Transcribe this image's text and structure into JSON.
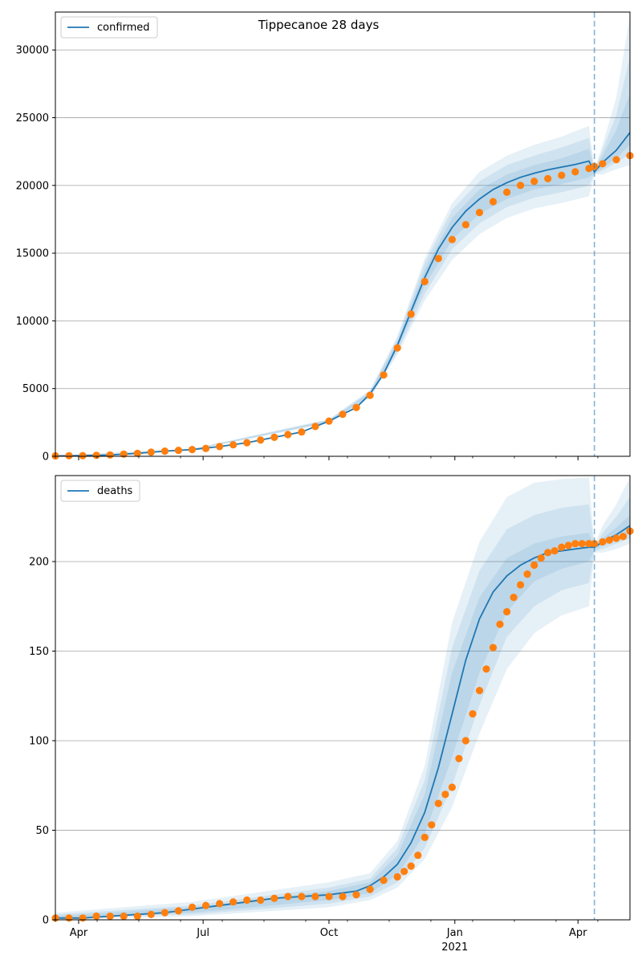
{
  "title": "Tippecanoe 28 days",
  "colors": {
    "model": "#1f77b4",
    "observed": "#ff7f0e",
    "band": "#1f77b4",
    "grid": "#b0b0b0",
    "vline": "#1f77b4"
  },
  "x_ticks": [
    {
      "day": 17,
      "label": "Apr"
    },
    {
      "day": 108,
      "label": "Jul"
    },
    {
      "day": 200,
      "label": "Oct"
    },
    {
      "day": 292,
      "label": "Jan",
      "sub": "2021"
    },
    {
      "day": 382,
      "label": "Apr"
    }
  ],
  "chart_data": [
    {
      "type": "line",
      "legend": "confirmed",
      "legend_position": "top-left",
      "x_axis": {
        "start": "2020-03-15",
        "end": "2021-04-28",
        "unit": "days since 2020-03-15",
        "forecast_start_day": 394
      },
      "ylim": [
        0,
        32800
      ],
      "y_ticks": [
        0,
        5000,
        10000,
        15000,
        20000,
        25000,
        30000
      ],
      "grid": "horizontal",
      "observed_points": {
        "x": [
          0,
          10,
          20,
          30,
          40,
          50,
          60,
          70,
          80,
          90,
          100,
          110,
          120,
          130,
          140,
          150,
          160,
          170,
          180,
          190,
          200,
          210,
          220,
          230,
          240,
          250,
          260,
          270,
          280,
          290,
          300,
          310,
          320,
          330,
          340,
          350,
          360,
          370,
          380,
          390,
          394,
          400,
          410,
          420
        ],
        "values": [
          30,
          40,
          50,
          70,
          100,
          160,
          220,
          300,
          380,
          440,
          500,
          580,
          720,
          850,
          1000,
          1200,
          1400,
          1600,
          1800,
          2200,
          2600,
          3100,
          3600,
          4500,
          6000,
          8000,
          10500,
          12900,
          14600,
          16000,
          17100,
          18000,
          18800,
          19500,
          20000,
          20300,
          20500,
          20750,
          21000,
          21250,
          21400,
          21600,
          21900,
          22200
        ]
      },
      "model_line": {
        "x": [
          0,
          20,
          40,
          60,
          80,
          100,
          120,
          140,
          160,
          180,
          200,
          210,
          220,
          230,
          240,
          250,
          260,
          270,
          280,
          290,
          300,
          310,
          320,
          330,
          340,
          350,
          360,
          370,
          380,
          390,
          394,
          400,
          410,
          420
        ],
        "values": [
          30,
          50,
          100,
          220,
          380,
          500,
          720,
          1000,
          1400,
          1800,
          2600,
          3100,
          3600,
          4600,
          6100,
          8200,
          10700,
          13200,
          15300,
          16900,
          18100,
          19000,
          19700,
          20200,
          20600,
          20900,
          21150,
          21350,
          21550,
          21800,
          21000,
          21700,
          22600,
          23900
        ]
      },
      "bands": [
        {
          "x": [
            0,
            100,
            200,
            230,
            250,
            270,
            290,
            310,
            330,
            350,
            370,
            390,
            394,
            400,
            410,
            420
          ],
          "lower": [
            20,
            450,
            2450,
            4300,
            7500,
            11500,
            14500,
            16400,
            17600,
            18300,
            18700,
            19200,
            20800,
            20800,
            21200,
            21500
          ],
          "upper": [
            40,
            560,
            2750,
            4900,
            8900,
            14600,
            18700,
            21000,
            22200,
            23000,
            23600,
            24400,
            21200,
            23000,
            26500,
            32500
          ]
        },
        {
          "x": [
            0,
            100,
            200,
            230,
            250,
            270,
            290,
            310,
            330,
            350,
            370,
            390,
            394,
            400,
            410,
            420
          ],
          "lower": [
            22,
            470,
            2500,
            4400,
            7700,
            12000,
            15300,
            17200,
            18400,
            19100,
            19500,
            20000,
            20850,
            21100,
            21700,
            22300
          ],
          "upper": [
            38,
            540,
            2700,
            4800,
            8700,
            14300,
            18200,
            20300,
            21500,
            22200,
            22800,
            23500,
            21150,
            22600,
            25200,
            29500
          ]
        },
        {
          "x": [
            0,
            100,
            200,
            230,
            250,
            270,
            290,
            310,
            330,
            350,
            370,
            390,
            394,
            400,
            410,
            420
          ],
          "lower": [
            25,
            480,
            2550,
            4500,
            7900,
            12600,
            16000,
            17900,
            19000,
            19700,
            20100,
            20600,
            20900,
            21300,
            22000,
            23000
          ],
          "upper": [
            35,
            520,
            2650,
            4700,
            8500,
            13800,
            17600,
            19700,
            20800,
            21500,
            22000,
            22700,
            21100,
            22200,
            24100,
            26800
          ]
        }
      ]
    },
    {
      "type": "line",
      "legend": "deaths",
      "legend_position": "top-left",
      "x_axis": {
        "start": "2020-03-15",
        "end": "2021-04-28",
        "unit": "days since 2020-03-15",
        "forecast_start_day": 394
      },
      "ylim": [
        0,
        248
      ],
      "y_ticks": [
        0,
        50,
        100,
        150,
        200
      ],
      "grid": "horizontal",
      "observed_points": {
        "x": [
          0,
          10,
          20,
          30,
          40,
          50,
          60,
          70,
          80,
          90,
          100,
          110,
          120,
          130,
          140,
          150,
          160,
          170,
          180,
          190,
          200,
          210,
          220,
          230,
          240,
          250,
          255,
          260,
          265,
          270,
          275,
          280,
          285,
          290,
          295,
          300,
          305,
          310,
          315,
          320,
          325,
          330,
          335,
          340,
          345,
          350,
          355,
          360,
          365,
          370,
          375,
          380,
          385,
          390,
          394,
          400,
          405,
          410,
          415,
          420
        ],
        "values": [
          1,
          1,
          1,
          2,
          2,
          2,
          2,
          3,
          4,
          5,
          7,
          8,
          9,
          10,
          11,
          11,
          12,
          13,
          13,
          13,
          13,
          13,
          14,
          17,
          22,
          24,
          27,
          30,
          36,
          46,
          53,
          65,
          70,
          74,
          90,
          100,
          115,
          128,
          140,
          152,
          165,
          172,
          180,
          187,
          193,
          198,
          202,
          205,
          206,
          208,
          209,
          210,
          210,
          210,
          210,
          211,
          212,
          213,
          214,
          217
        ]
      },
      "model_line": {
        "x": [
          0,
          20,
          40,
          60,
          80,
          100,
          120,
          140,
          160,
          180,
          200,
          220,
          230,
          240,
          250,
          260,
          270,
          280,
          290,
          300,
          310,
          320,
          330,
          340,
          350,
          360,
          370,
          380,
          390,
          394,
          400,
          410,
          420
        ],
        "values": [
          1,
          1,
          2,
          3,
          4,
          6,
          8,
          10,
          12,
          13,
          14,
          16,
          19,
          24,
          31,
          43,
          60,
          85,
          115,
          145,
          168,
          183,
          192,
          198,
          202,
          205,
          206,
          207,
          208,
          208,
          211,
          215,
          220
        ]
      },
      "bands": [
        {
          "x": [
            0,
            100,
            200,
            230,
            250,
            270,
            290,
            310,
            330,
            350,
            370,
            390,
            394,
            400,
            410,
            420
          ],
          "lower": [
            0,
            2,
            7,
            11,
            18,
            34,
            63,
            104,
            140,
            160,
            170,
            175,
            205,
            205,
            207,
            210
          ],
          "upper": [
            4,
            10,
            21,
            26,
            44,
            86,
            166,
            211,
            236,
            244,
            246,
            247,
            209,
            220,
            232,
            247
          ]
        },
        {
          "x": [
            0,
            100,
            200,
            230,
            250,
            270,
            290,
            310,
            330,
            350,
            370,
            390,
            394,
            400,
            410,
            420
          ],
          "lower": [
            1,
            3,
            9,
            13,
            21,
            40,
            75,
            120,
            158,
            175,
            184,
            188,
            206,
            207,
            210,
            213
          ],
          "upper": [
            3,
            8,
            18,
            23,
            40,
            78,
            152,
            195,
            218,
            226,
            230,
            232,
            208,
            216,
            225,
            236
          ]
        },
        {
          "x": [
            0,
            100,
            200,
            230,
            250,
            270,
            290,
            310,
            330,
            350,
            370,
            390,
            394,
            400,
            410,
            420
          ],
          "lower": [
            1,
            4,
            11,
            15,
            25,
            48,
            91,
            138,
            172,
            189,
            196,
            200,
            206.5,
            209,
            212,
            216
          ],
          "upper": [
            2,
            7,
            16,
            21,
            36,
            70,
            138,
            180,
            202,
            210,
            214,
            216,
            207.5,
            213,
            219,
            226
          ]
        }
      ]
    }
  ]
}
